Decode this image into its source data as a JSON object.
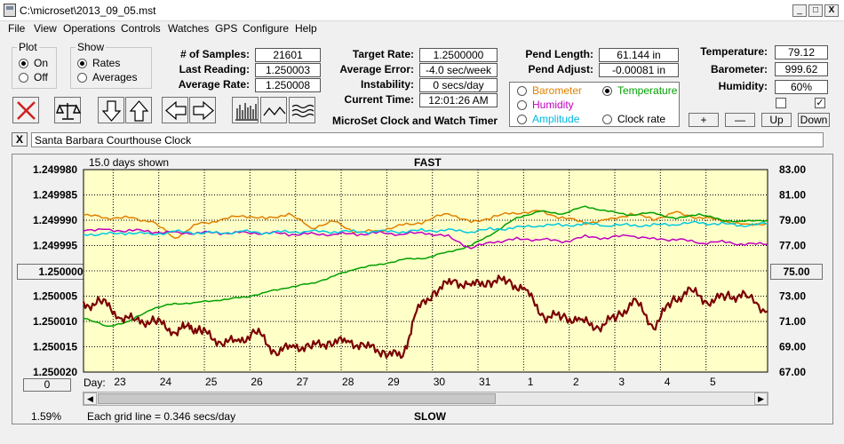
{
  "window": {
    "title": "C:\\microset\\2013_09_05.mst",
    "min": "_",
    "max": "□",
    "close": "X"
  },
  "menu": [
    "File",
    "View",
    "Operations",
    "Controls",
    "Watches",
    "GPS",
    "Configure",
    "Help"
  ],
  "plot": {
    "legend": "Plot",
    "on": "On",
    "off": "Off",
    "selected": "On"
  },
  "show": {
    "legend": "Show",
    "rates": "Rates",
    "averages": "Averages",
    "selected": "Rates"
  },
  "stats": {
    "samples_label": "# of Samples:",
    "samples": "21601",
    "last_label": "Last Reading:",
    "last": "1.250003",
    "avg_label": "Average Rate:",
    "avg": "1.250008",
    "target_label": "Target Rate:",
    "target": "1.2500000",
    "avgerr_label": "Average Error:",
    "avgerr": "-4.0 sec/week",
    "instab_label": "Instability:",
    "instab": "0 secs/day",
    "time_label": "Current Time:",
    "time": "12:01:26 AM",
    "pendlen_label": "Pend Length:",
    "pendlen": "61.144 in",
    "pendadj_label": "Pend Adjust:",
    "pendadj": "-0.00081 in",
    "temp_label": "Temperature:",
    "temp": "79.12",
    "baro_label": "Barometer:",
    "baro": "999.62",
    "hum_label": "Humidity:",
    "hum": "60%"
  },
  "app_name": "MicroSet Clock and Watch Timer",
  "series_select": {
    "barometer": "Barometer",
    "temperature": "Temperature",
    "humidity": "Humidity",
    "amplitude": "Amplitude",
    "clockrate": "Clock rate",
    "selected": "temperature",
    "colors": {
      "barometer": "#e08000",
      "temperature": "#00a000",
      "humidity": "#c000c0",
      "amplitude": "#00c8e0",
      "clockrate": "#000000"
    }
  },
  "right_buttons": {
    "plus": "+",
    "minus": "—",
    "up": "Up",
    "down": "Down"
  },
  "checkbox_2": "✓",
  "note": {
    "close": "X",
    "text": "Santa Barbara Courthouse Clock"
  },
  "toolbar": {
    "icons": [
      "close-x-icon",
      "balance-scale-icon",
      "arrow-down-icon",
      "arrow-up-icon",
      "arrow-left-icon",
      "arrow-right-icon",
      "bar-graph-icon",
      "line-wave-icon",
      "multi-wave-icon"
    ]
  },
  "chart": {
    "days_shown": "15.0 days shown",
    "top_label": "FAST",
    "bottom_label": "SLOW",
    "center_left": "1.250000",
    "center_right": "75.00",
    "zero_btn": "0",
    "pct": "1.59%",
    "grid_note": "Each grid line = 0.346 secs/day",
    "day_label": "Day:",
    "bg": "#ffffc8"
  },
  "chart_data": {
    "type": "line",
    "y_left_ticks": [
      "1.249980",
      "1.249985",
      "1.249990",
      "1.249995",
      "1.250000",
      "1.250005",
      "1.250010",
      "1.250015",
      "1.250020"
    ],
    "y_right_ticks": [
      "83.00",
      "81.00",
      "79.00",
      "77.00",
      "75.00",
      "73.00",
      "71.00",
      "69.00",
      "67.00"
    ],
    "ylim_left": [
      1.24998,
      1.25002
    ],
    "ylim_right": [
      67,
      83
    ],
    "x_ticks": [
      "23",
      "24",
      "25",
      "26",
      "27",
      "28",
      "29",
      "30",
      "31",
      "1",
      "2",
      "3",
      "4",
      "5"
    ],
    "xlim": [
      22.2,
      37.2
    ],
    "series": [
      {
        "color": "#e08000",
        "axis": "right",
        "x": [
          22.2,
          22.7,
          23.2,
          23.7,
          24.2,
          24.7,
          25.2,
          25.7,
          26.2,
          26.7,
          27.2,
          27.7,
          28.2,
          28.7,
          29.2,
          29.7,
          30.2,
          30.7,
          31.2,
          31.7,
          32.2,
          32.7,
          33.2,
          33.7,
          34.2,
          34.7,
          35.2,
          35.7,
          36.2,
          36.7,
          37.2
        ],
        "y": [
          79.4,
          79.2,
          79.2,
          78.9,
          77.6,
          78.7,
          79.0,
          79.4,
          79.1,
          79.5,
          78.4,
          78.9,
          78.0,
          78.2,
          78.6,
          78.9,
          79.6,
          78.8,
          79.3,
          79.6,
          79.7,
          79.2,
          78.8,
          79.0,
          79.5,
          79.1,
          79.6,
          79.2,
          79.0,
          78.6,
          78.8
        ]
      },
      {
        "color": "#00a000",
        "axis": "right",
        "x": [
          22.2,
          22.7,
          23.2,
          23.7,
          24.2,
          24.7,
          25.2,
          25.7,
          26.2,
          26.7,
          27.2,
          27.7,
          28.2,
          28.7,
          29.2,
          29.7,
          30.2,
          30.7,
          31.2,
          31.7,
          32.2,
          32.7,
          33.2,
          33.7,
          34.2,
          34.7,
          35.2,
          35.7,
          36.2,
          36.7,
          37.2
        ],
        "y": [
          71.3,
          70.6,
          71.0,
          72.0,
          72.4,
          72.5,
          72.7,
          72.9,
          73.3,
          73.7,
          74.0,
          74.6,
          75.2,
          75.5,
          75.9,
          76.0,
          76.5,
          77.0,
          78.0,
          79.2,
          79.7,
          79.5,
          80.1,
          79.7,
          79.4,
          79.6,
          79.1,
          79.5,
          79.0,
          78.9,
          79.0
        ]
      },
      {
        "color": "#c000c0",
        "axis": "right",
        "x": [
          22.2,
          22.7,
          23.2,
          23.7,
          24.2,
          24.7,
          25.2,
          25.7,
          26.2,
          26.7,
          27.2,
          27.7,
          28.2,
          28.7,
          29.2,
          29.7,
          30.2,
          30.7,
          31.2,
          31.7,
          32.2,
          32.7,
          33.2,
          33.7,
          34.2,
          34.7,
          35.2,
          35.7,
          36.2,
          36.7,
          37.2
        ],
        "y": [
          78.3,
          78.2,
          78.2,
          78.1,
          78.0,
          78.0,
          78.0,
          78.0,
          78.0,
          77.9,
          77.9,
          77.9,
          77.9,
          78.0,
          77.9,
          78.0,
          77.7,
          76.8,
          77.3,
          77.5,
          77.5,
          77.3,
          77.7,
          77.6,
          77.8,
          77.5,
          77.5,
          77.2,
          77.3,
          77.1,
          77.1
        ]
      },
      {
        "color": "#00c8e0",
        "axis": "right",
        "x": [
          22.2,
          22.7,
          23.2,
          23.7,
          24.2,
          24.7,
          25.2,
          25.7,
          26.2,
          26.7,
          27.2,
          27.7,
          28.2,
          28.7,
          29.2,
          29.7,
          30.2,
          30.7,
          31.2,
          31.7,
          32.2,
          32.7,
          33.2,
          33.7,
          34.2,
          34.7,
          35.2,
          35.7,
          36.2,
          36.7,
          37.2
        ],
        "y": [
          77.9,
          77.9,
          78.0,
          77.9,
          78.1,
          78.0,
          78.0,
          78.1,
          78.0,
          78.1,
          78.1,
          78.1,
          78.1,
          78.1,
          78.1,
          78.2,
          78.2,
          78.1,
          78.3,
          78.4,
          78.6,
          78.6,
          78.7,
          78.6,
          78.6,
          78.6,
          78.7,
          78.8,
          78.7,
          78.6,
          78.7
        ]
      },
      {
        "color": "#7a0000",
        "axis": "left",
        "x": [
          22.2,
          22.6,
          23.0,
          23.4,
          23.8,
          24.2,
          24.5,
          24.8,
          25.2,
          25.6,
          26.0,
          26.4,
          26.8,
          27.2,
          27.6,
          28.0,
          28.4,
          28.8,
          29.2,
          29.5,
          29.9,
          30.3,
          30.7,
          31.1,
          31.5,
          31.9,
          32.3,
          32.7,
          33.1,
          33.5,
          33.9,
          34.3,
          34.7,
          35.1,
          35.5,
          35.9,
          36.3,
          36.7,
          37.2
        ],
        "y": [
          1.250007,
          1.250006,
          1.250009,
          1.25001,
          1.25001,
          1.250012,
          1.250011,
          1.250012,
          1.250014,
          1.250014,
          1.250012,
          1.250016,
          1.250015,
          1.250015,
          1.250014,
          1.250014,
          1.250015,
          1.250016,
          1.250017,
          1.250008,
          1.250004,
          1.250002,
          1.250003,
          1.250002,
          1.250002,
          1.250004,
          1.250009,
          1.250009,
          1.25001,
          1.250011,
          1.250009,
          1.250006,
          1.250011,
          1.250006,
          1.250004,
          1.250006,
          1.250005,
          1.250005,
          1.250008
        ]
      }
    ]
  }
}
